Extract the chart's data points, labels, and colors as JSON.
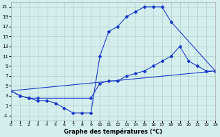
{
  "background_color": "#d4eeee",
  "grid_color": "#b0cccc",
  "line_color": "#1a3ac8",
  "xlim": [
    0,
    23
  ],
  "ylim": [
    -2,
    22
  ],
  "yticks": [
    -1,
    1,
    3,
    5,
    7,
    9,
    11,
    13,
    15,
    17,
    19,
    21
  ],
  "xticks": [
    0,
    1,
    2,
    3,
    4,
    5,
    6,
    7,
    8,
    9,
    10,
    11,
    12,
    13,
    14,
    15,
    16,
    17,
    18,
    19,
    20,
    21,
    22,
    23
  ],
  "xlabel": "Graphe des températures (°C)",
  "curve1_x": [
    0,
    1,
    2,
    3,
    4,
    5,
    6,
    7,
    8,
    9,
    10,
    11,
    12,
    13,
    14,
    15,
    16,
    17,
    18,
    23
  ],
  "curve1_y": [
    4,
    3,
    2.5,
    2,
    2,
    1.5,
    0.5,
    -0.5,
    -0.5,
    -0.5,
    11,
    16,
    17,
    19,
    20,
    21,
    21,
    21,
    18,
    8
  ],
  "curve2_x": [
    0,
    1,
    2,
    3,
    9,
    10,
    11,
    12,
    13,
    14,
    15,
    16,
    17,
    18,
    19,
    20,
    21,
    22,
    23
  ],
  "curve2_y": [
    4,
    3,
    2.5,
    2.5,
    2.5,
    5.5,
    6,
    6,
    7,
    7.5,
    8,
    9,
    10,
    11,
    13,
    10,
    9,
    8,
    8
  ],
  "curve3_x": [
    0,
    23
  ],
  "curve3_y": [
    4,
    8
  ]
}
